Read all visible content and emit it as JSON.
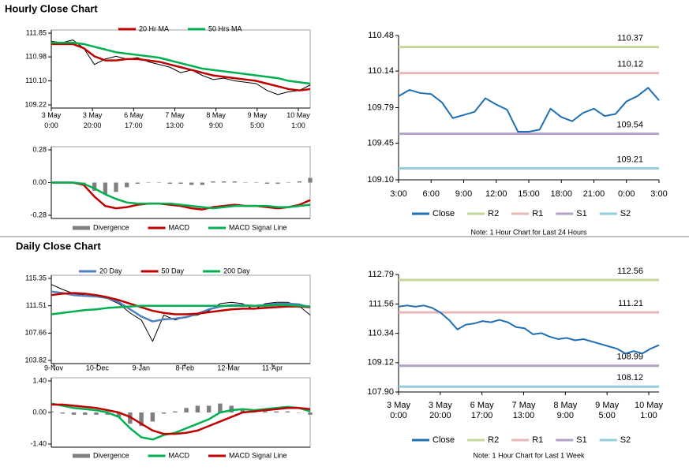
{
  "sections": [
    "Hourly Close Chart",
    "Daily Close Chart"
  ],
  "chart_data": [
    {
      "type": "line",
      "xticklabels": [
        [
          "3 May",
          "0:00"
        ],
        [
          "3 May",
          "20:00"
        ],
        [
          "6 May",
          "17:00"
        ],
        [
          "7 May",
          "13:00"
        ],
        [
          "8 May",
          "9:00"
        ],
        [
          "9 May",
          "5:00"
        ],
        [
          "10 May",
          "1:00"
        ]
      ],
      "ylim": [
        109.22,
        111.85
      ],
      "yticks": [
        111.85,
        110.98,
        {
          "value": 110.1,
          "label": "110.10"
        },
        109.22
      ],
      "price": {
        "color": "#000000",
        "values": [
          111.55,
          111.5,
          111.6,
          111.3,
          110.7,
          110.9,
          111.0,
          110.9,
          110.95,
          110.8,
          110.7,
          110.6,
          110.4,
          110.5,
          110.3,
          110.15,
          110.2,
          110.1,
          110.05,
          110.0,
          109.75,
          109.6,
          109.7,
          109.75,
          109.95
        ]
      },
      "series": [
        {
          "name": "20 Hr MA",
          "color": "#c00000",
          "values": [
            111.45,
            111.45,
            111.45,
            111.3,
            111.0,
            110.85,
            110.85,
            110.9,
            110.9,
            110.85,
            110.8,
            110.7,
            110.6,
            110.5,
            110.4,
            110.3,
            110.25,
            110.2,
            110.15,
            110.1,
            110.0,
            109.9,
            109.8,
            109.75,
            109.8
          ]
        },
        {
          "name": "50 Hrs MA",
          "color": "#00b050",
          "values": [
            111.5,
            111.5,
            111.5,
            111.45,
            111.35,
            111.25,
            111.15,
            111.1,
            111.05,
            111.0,
            110.95,
            110.85,
            110.75,
            110.65,
            110.55,
            110.5,
            110.45,
            110.4,
            110.35,
            110.3,
            110.25,
            110.2,
            110.1,
            110.05,
            110.0
          ]
        }
      ]
    },
    {
      "type": "combo",
      "ylim": [
        -0.28,
        0.28
      ],
      "yticks": [
        0.28,
        {
          "value": 0,
          "label": "0.00"
        },
        -0.28
      ],
      "series": [
        {
          "name": "Divergence",
          "color": "#7f7f7f",
          "style": "bar",
          "values": [
            0,
            0,
            0,
            -0.01,
            -0.07,
            -0.1,
            -0.08,
            -0.04,
            -0.01,
            0,
            0,
            -0.01,
            -0.01,
            -0.02,
            -0.02,
            0.01,
            0.01,
            0.01,
            0,
            0,
            -0.01,
            -0.01,
            0,
            0.01,
            0.04
          ]
        },
        {
          "name": "MACD",
          "color": "#c00000",
          "values": [
            0,
            0,
            0,
            -0.02,
            -0.12,
            -0.2,
            -0.22,
            -0.21,
            -0.19,
            -0.18,
            -0.18,
            -0.19,
            -0.2,
            -0.22,
            -0.23,
            -0.21,
            -0.2,
            -0.19,
            -0.2,
            -0.2,
            -0.21,
            -0.22,
            -0.21,
            -0.19,
            -0.15
          ]
        },
        {
          "name": "MACD Signal Line",
          "color": "#00b050",
          "values": [
            0,
            0,
            0,
            -0.01,
            -0.05,
            -0.1,
            -0.14,
            -0.17,
            -0.18,
            -0.18,
            -0.18,
            -0.18,
            -0.19,
            -0.2,
            -0.21,
            -0.22,
            -0.21,
            -0.2,
            -0.2,
            -0.2,
            -0.2,
            -0.21,
            -0.21,
            -0.2,
            -0.19
          ]
        }
      ]
    },
    {
      "type": "line",
      "xticklabels": [
        "3:00",
        "6:00",
        "9:00",
        "12:00",
        "15:00",
        "18:00",
        "21:00",
        "0:00",
        "3:00"
      ],
      "ylim": [
        109.1,
        110.48
      ],
      "yticks": [
        110.48,
        110.14,
        109.79,
        109.45,
        {
          "value": 109.1,
          "label": "109.10"
        }
      ],
      "series": [
        {
          "name": "Close",
          "color": "#1f6fb2",
          "values": [
            109.9,
            109.96,
            109.93,
            109.92,
            109.84,
            109.69,
            109.72,
            109.75,
            109.88,
            109.82,
            109.77,
            109.56,
            109.56,
            109.58,
            109.78,
            109.7,
            109.66,
            109.74,
            109.78,
            109.71,
            109.73,
            109.85,
            109.9,
            109.98,
            109.86
          ]
        }
      ],
      "levels": [
        {
          "name": "R2",
          "color": "#c4d79b",
          "value": 110.37
        },
        {
          "name": "R1",
          "color": "#e6b9b8",
          "value": 110.12
        },
        {
          "name": "S1",
          "color": "#b3a2c7",
          "value": 109.54
        },
        {
          "name": "S2",
          "color": "#93cddd",
          "value": 109.21
        }
      ],
      "note": "Note: 1 Hour Chart for Last 24 Hours"
    },
    {
      "type": "line",
      "xticklabels": [
        "9-Nov",
        "10-Dec",
        "9-Jan",
        "8-Feb",
        "12-Mar",
        "11-Apr"
      ],
      "ylim": [
        103.82,
        115.35
      ],
      "yticks": [
        115.35,
        111.51,
        107.66,
        103.82
      ],
      "price": {
        "color": "#000000",
        "values": [
          114.5,
          113.8,
          113.2,
          113.0,
          112.8,
          112.5,
          111.8,
          110.5,
          109.5,
          106.5,
          110.2,
          109.5,
          110.0,
          110.2,
          110.8,
          111.8,
          112.0,
          111.8,
          111.0,
          111.8,
          112.0,
          112.0,
          111.5,
          110.2
        ]
      },
      "series": [
        {
          "name": "20 Day",
          "color": "#4f81bd",
          "values": [
            113.5,
            113.3,
            113.0,
            112.9,
            112.8,
            112.6,
            112.0,
            111.0,
            110.0,
            109.3,
            109.6,
            109.7,
            109.9,
            110.4,
            111.0,
            111.4,
            111.6,
            111.6,
            111.5,
            111.6,
            111.8,
            111.8,
            111.7,
            111.3
          ]
        },
        {
          "name": "50 Day",
          "color": "#c00000",
          "values": [
            113.0,
            113.2,
            113.3,
            113.2,
            113.0,
            112.7,
            112.3,
            111.8,
            111.3,
            110.8,
            110.5,
            110.3,
            110.3,
            110.4,
            110.6,
            110.8,
            111.0,
            111.1,
            111.1,
            111.2,
            111.3,
            111.4,
            111.4,
            111.3
          ]
        },
        {
          "name": "200 Day",
          "color": "#00b050",
          "values": [
            110.3,
            110.5,
            110.7,
            110.9,
            111.0,
            111.2,
            111.3,
            111.4,
            111.5,
            111.5,
            111.5,
            111.5,
            111.5,
            111.5,
            111.5,
            111.5,
            111.5,
            111.5,
            111.5,
            111.5,
            111.6,
            111.6,
            111.5,
            111.4
          ]
        }
      ]
    },
    {
      "type": "combo",
      "ylim": [
        -1.4,
        1.4
      ],
      "yticks": [
        {
          "value": 1.4,
          "label": "1.40"
        },
        {
          "value": 0,
          "label": "0.00"
        },
        {
          "value": -1.4,
          "label": "-1.40"
        }
      ],
      "series": [
        {
          "name": "Divergence",
          "color": "#7f7f7f",
          "style": "bar",
          "values": [
            0.05,
            -0.05,
            -0.1,
            -0.1,
            -0.1,
            -0.1,
            -0.2,
            -0.5,
            -0.6,
            -0.4,
            -0.05,
            0.05,
            0.2,
            0.3,
            0.3,
            0.4,
            0.3,
            0.15,
            0.05,
            0.05,
            0.05,
            0.05,
            0,
            -0.1
          ]
        },
        {
          "name": "MACD",
          "color": "#00b050",
          "values": [
            0.4,
            0.3,
            0.2,
            0.15,
            0.1,
            0,
            -0.2,
            -0.7,
            -1.1,
            -1.2,
            -1.0,
            -0.9,
            -0.7,
            -0.5,
            -0.3,
            0,
            0.1,
            0.15,
            0.1,
            0.15,
            0.2,
            0.25,
            0.2,
            0.05
          ]
        },
        {
          "name": "MACD Signal Line",
          "color": "#c00000",
          "values": [
            0.35,
            0.35,
            0.3,
            0.25,
            0.2,
            0.1,
            0,
            -0.2,
            -0.5,
            -0.8,
            -0.95,
            -0.95,
            -0.9,
            -0.8,
            -0.6,
            -0.4,
            -0.2,
            0,
            0.05,
            0.1,
            0.15,
            0.2,
            0.2,
            0.15
          ]
        }
      ]
    },
    {
      "type": "line",
      "xticklabels": [
        [
          "3 May",
          "0:00"
        ],
        [
          "3 May",
          "20:00"
        ],
        [
          "6 May",
          "17:00"
        ],
        [
          "7 May",
          "13:00"
        ],
        [
          "8 May",
          "9:00"
        ],
        [
          "9 May",
          "5:00"
        ],
        [
          "10 May",
          "1:00"
        ]
      ],
      "ylim": [
        107.9,
        112.79
      ],
      "yticks": [
        112.79,
        111.56,
        110.34,
        109.12,
        {
          "value": 107.9,
          "label": "107.90"
        }
      ],
      "series": [
        {
          "name": "Close",
          "color": "#1f6fb2",
          "values": [
            111.45,
            111.5,
            111.45,
            111.5,
            111.4,
            111.2,
            110.9,
            110.5,
            110.7,
            110.75,
            110.85,
            110.8,
            110.9,
            110.8,
            110.6,
            110.55,
            110.3,
            110.35,
            110.2,
            110.1,
            110.15,
            110.05,
            110.1,
            110.0,
            109.9,
            109.8,
            109.7,
            109.5,
            109.6,
            109.5,
            109.7,
            109.85
          ]
        }
      ],
      "levels": [
        {
          "name": "R2",
          "color": "#c4d79b",
          "value": 112.56
        },
        {
          "name": "R1",
          "color": "#e6b9b8",
          "value": 111.21
        },
        {
          "name": "S1",
          "color": "#b3a2c7",
          "value": 108.99
        },
        {
          "name": "S2",
          "color": "#93cddd",
          "value": 108.12
        }
      ],
      "note": "Note: 1 Hour Chart for Last 1 Week"
    }
  ]
}
